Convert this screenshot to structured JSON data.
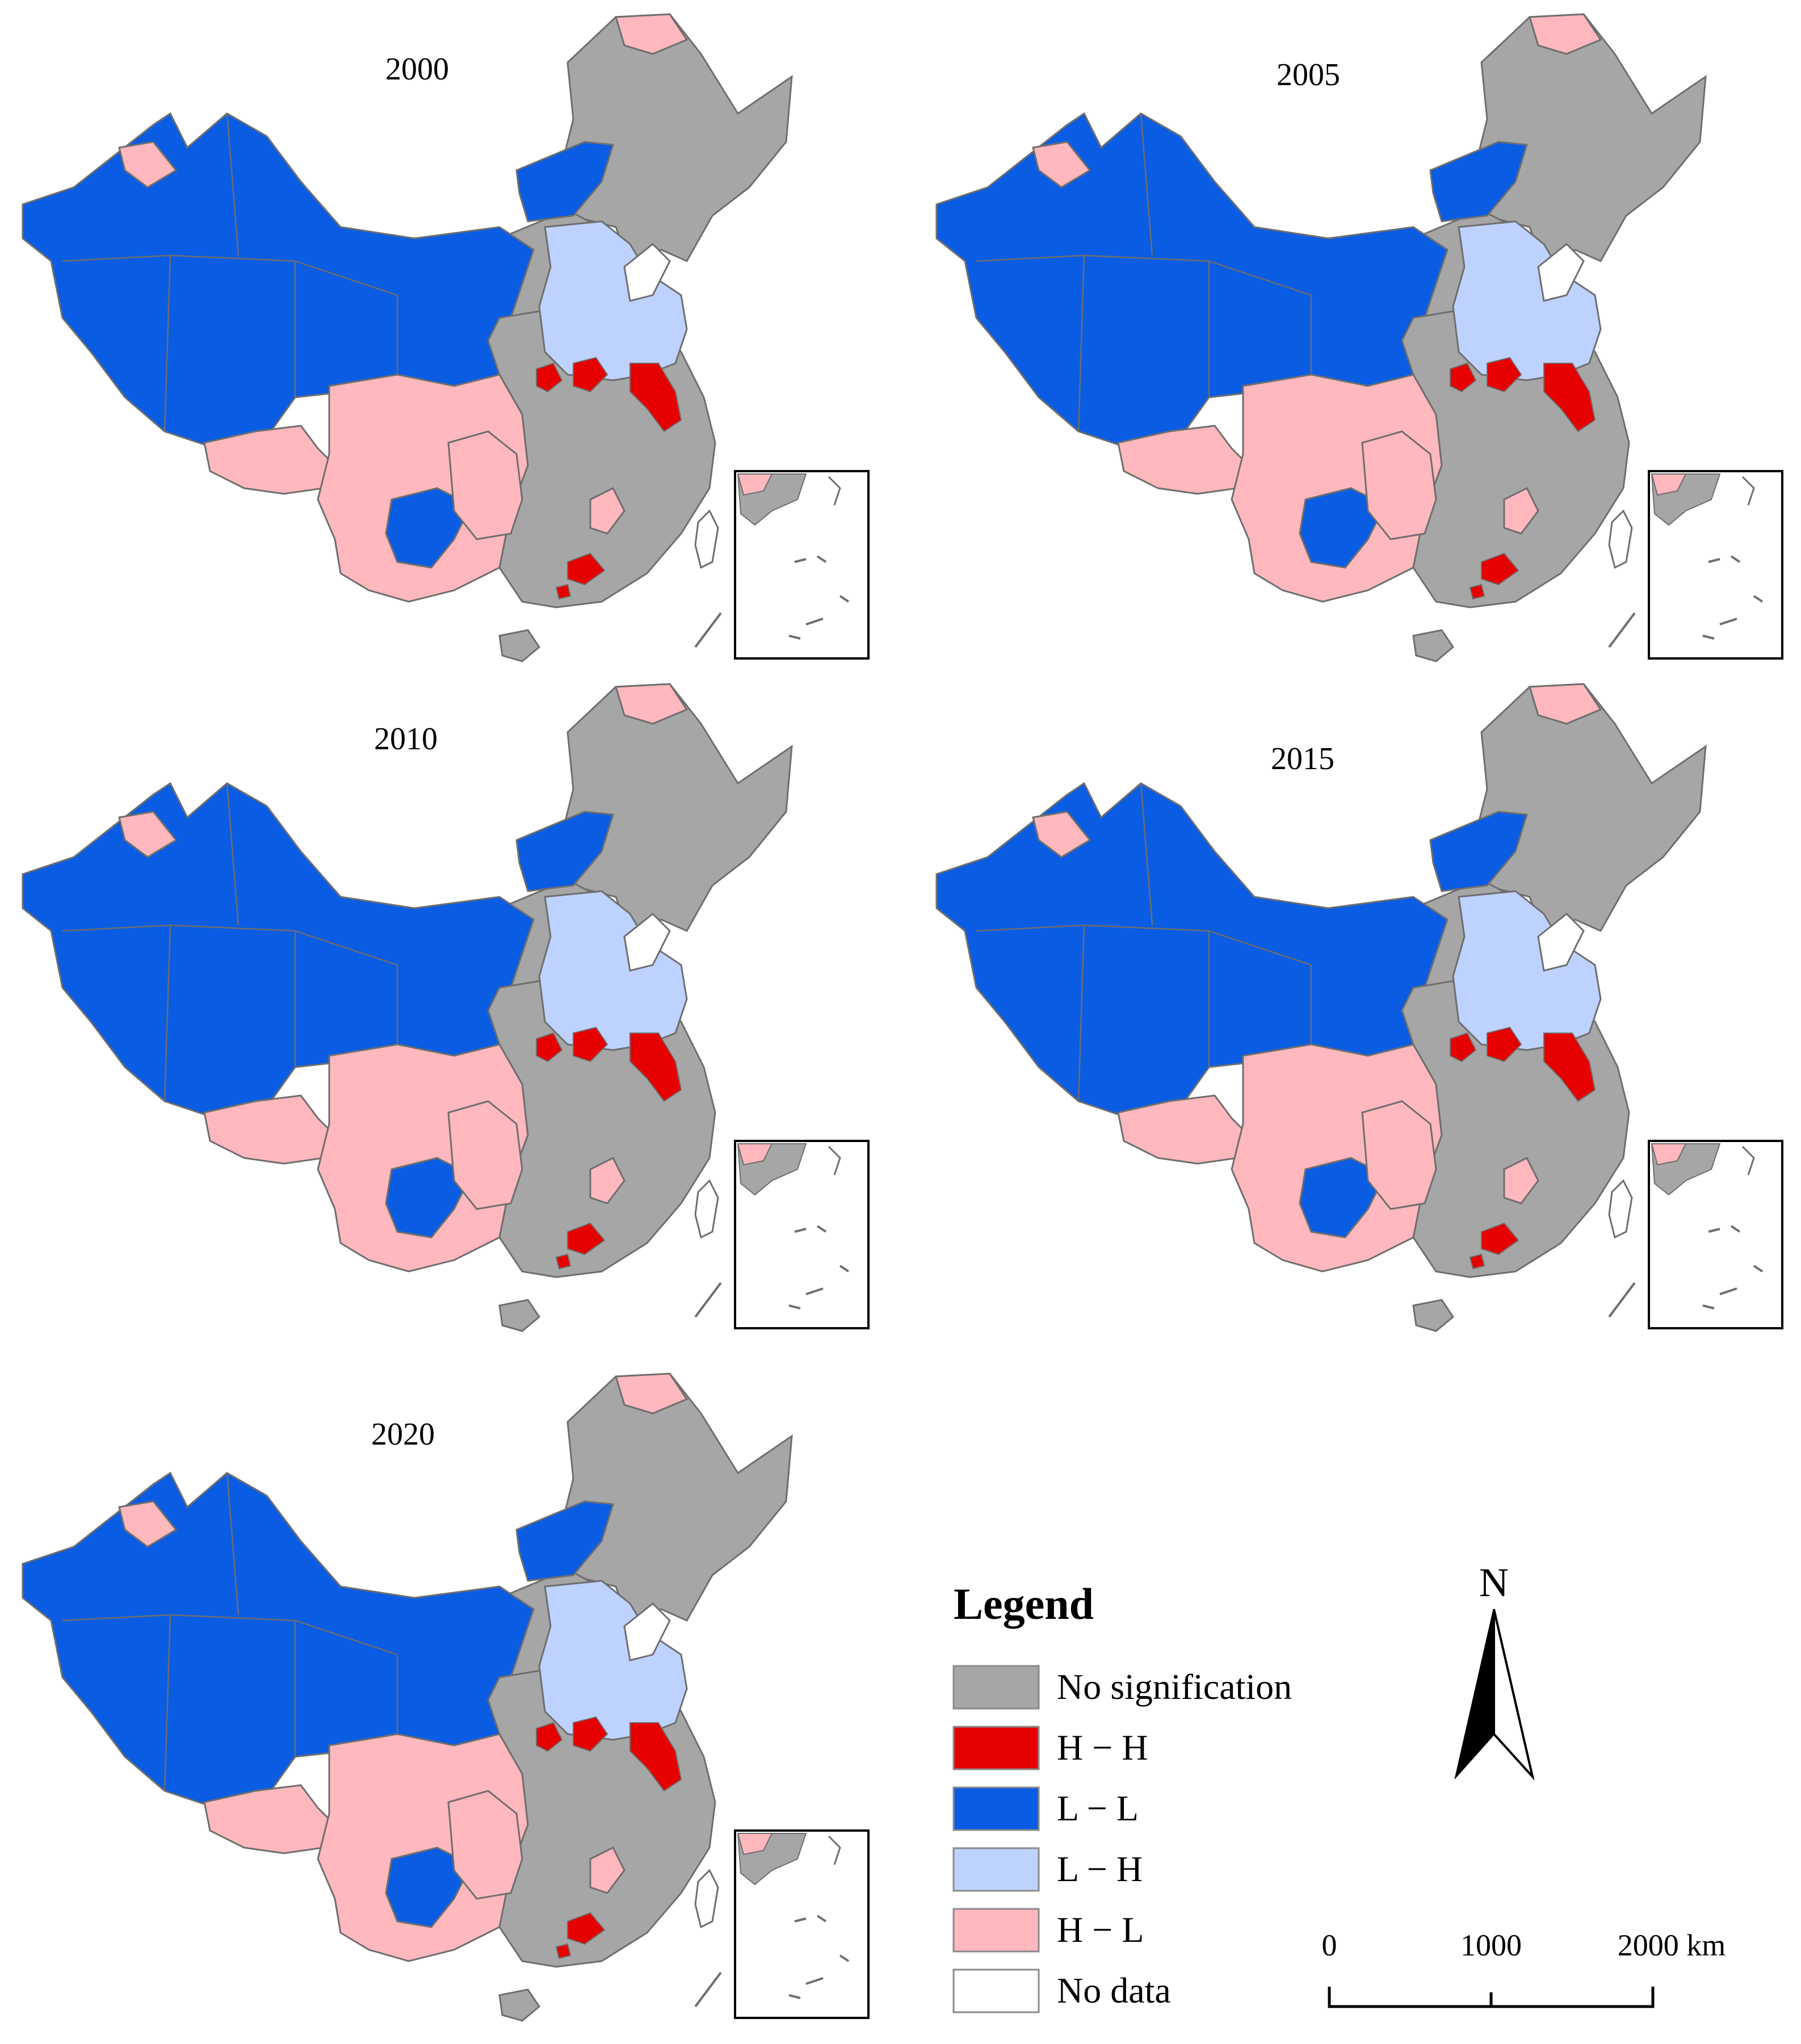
{
  "colors": {
    "no_signification": "#a6a6a6",
    "hh": "#e60000",
    "ll": "#0a5ce3",
    "lh": "#bed2ff",
    "hl": "#ffb8bd",
    "no_data": "#ffffff",
    "border": "#6e6e6e"
  },
  "maps": [
    {
      "year": "2000"
    },
    {
      "year": "2005"
    },
    {
      "year": "2010"
    },
    {
      "year": "2015"
    },
    {
      "year": "2020"
    }
  ],
  "legend": {
    "title": "Legend",
    "items": [
      {
        "label": "No signification",
        "color": "#a6a6a6"
      },
      {
        "label": "H − H",
        "color": "#e60000"
      },
      {
        "label": "L − L",
        "color": "#0a5ce3"
      },
      {
        "label": "L − H",
        "color": "#bed2ff"
      },
      {
        "label": "H − L",
        "color": "#ffb8bd"
      },
      {
        "label": "No data",
        "color": "#ffffff"
      }
    ]
  },
  "north_arrow": {
    "label": "N"
  },
  "scale_bar": {
    "ticks": [
      "0",
      "1000",
      "2000 km"
    ]
  }
}
